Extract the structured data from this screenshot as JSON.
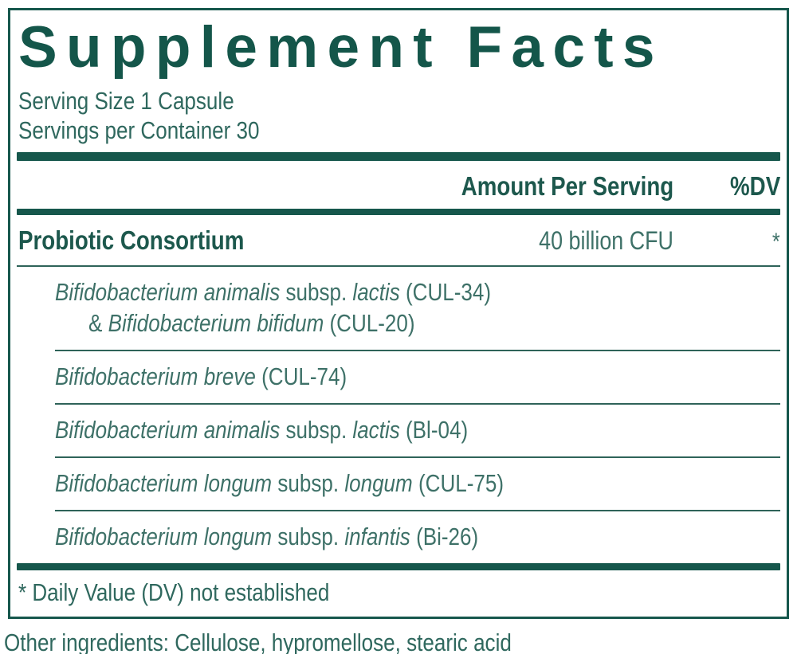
{
  "label": {
    "title": "Supplement Facts",
    "serving_size": "Serving Size 1 Capsule",
    "servings_per_container": "Servings per Container 30",
    "columns": {
      "amount": "Amount Per Serving",
      "dv": "%DV"
    },
    "main_row": {
      "name": "Probiotic Consortium",
      "amount": "40 billion CFU",
      "dv": "*"
    },
    "strains": [
      {
        "lines": [
          [
            {
              "text": "Bifidobacterium animalis",
              "italic": true
            },
            {
              "text": " subsp. ",
              "italic": false
            },
            {
              "text": "lactis",
              "italic": true
            },
            {
              "text": " (CUL-34)",
              "italic": false
            }
          ],
          [
            {
              "text": "& ",
              "italic": false
            },
            {
              "text": "Bifidobacterium bifidum",
              "italic": true
            },
            {
              "text": " (CUL-20)",
              "italic": false
            }
          ]
        ]
      },
      {
        "lines": [
          [
            {
              "text": "Bifidobacterium breve",
              "italic": true
            },
            {
              "text": " (CUL-74)",
              "italic": false
            }
          ]
        ]
      },
      {
        "lines": [
          [
            {
              "text": "Bifidobacterium animalis",
              "italic": true
            },
            {
              "text": " subsp. ",
              "italic": false
            },
            {
              "text": "lactis",
              "italic": true
            },
            {
              "text": " (Bl-04)",
              "italic": false
            }
          ]
        ]
      },
      {
        "lines": [
          [
            {
              "text": "Bifidobacterium longum",
              "italic": true
            },
            {
              "text": " subsp. ",
              "italic": false
            },
            {
              "text": "longum",
              "italic": true
            },
            {
              "text": " (CUL-75)",
              "italic": false
            }
          ]
        ]
      },
      {
        "lines": [
          [
            {
              "text": "Bifidobacterium longum",
              "italic": true
            },
            {
              "text": " subsp. ",
              "italic": false
            },
            {
              "text": "infantis",
              "italic": true
            },
            {
              "text": " (Bi-26)",
              "italic": false
            }
          ]
        ]
      }
    ],
    "footnote": "* Daily Value (DV) not established"
  },
  "other_ingredients": "Other ingredients: Cellulose, hypromellose, stearic acid",
  "colors": {
    "dark_teal": "#16574C",
    "body_teal": "#3E7168",
    "faint_bottom_line": "#C4D6D1"
  }
}
